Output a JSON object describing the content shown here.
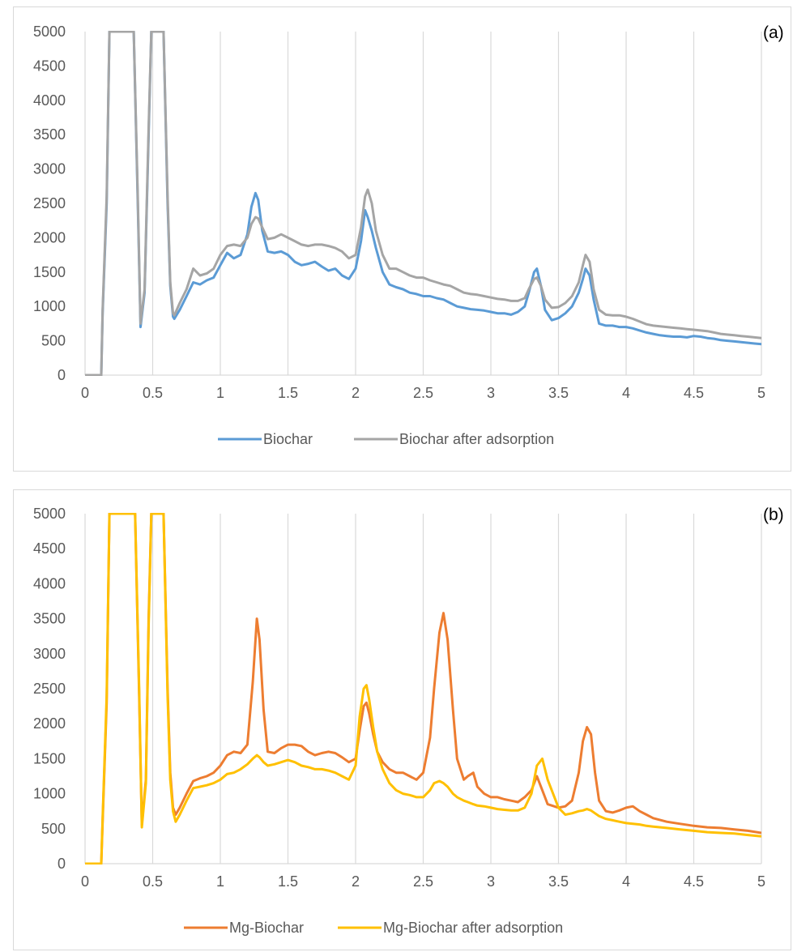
{
  "chart_data": [
    {
      "type": "line",
      "panel_label": "(a)",
      "xlabel": "",
      "ylabel": "",
      "xlim": [
        0,
        5
      ],
      "ylim": [
        0,
        5000
      ],
      "x_ticks": [
        "0",
        "0.5",
        "1",
        "1.5",
        "2",
        "2.5",
        "3",
        "3.5",
        "4",
        "4.5",
        "5"
      ],
      "y_ticks": [
        "0",
        "500",
        "1000",
        "1500",
        "2000",
        "2500",
        "3000",
        "3500",
        "4000",
        "4500",
        "5000"
      ],
      "grid": "vertical",
      "legend_position": "bottom",
      "series": [
        {
          "name": "Biochar",
          "color": "#5b9bd5",
          "x": [
            0,
            0.1,
            0.12,
            0.13,
            0.16,
            0.18,
            0.2,
            0.36,
            0.39,
            0.41,
            0.44,
            0.47,
            0.49,
            0.51,
            0.56,
            0.58,
            0.61,
            0.63,
            0.65,
            0.66,
            0.7,
            0.75,
            0.8,
            0.85,
            0.9,
            0.95,
            1.0,
            1.05,
            1.1,
            1.15,
            1.2,
            1.23,
            1.26,
            1.28,
            1.31,
            1.35,
            1.4,
            1.45,
            1.5,
            1.55,
            1.6,
            1.65,
            1.7,
            1.75,
            1.8,
            1.85,
            1.9,
            1.95,
            2.0,
            2.04,
            2.07,
            2.09,
            2.12,
            2.15,
            2.2,
            2.25,
            2.3,
            2.35,
            2.4,
            2.45,
            2.5,
            2.55,
            2.6,
            2.65,
            2.7,
            2.75,
            2.8,
            2.85,
            2.9,
            2.95,
            3.0,
            3.05,
            3.1,
            3.15,
            3.2,
            3.25,
            3.28,
            3.32,
            3.34,
            3.37,
            3.4,
            3.45,
            3.5,
            3.55,
            3.6,
            3.65,
            3.68,
            3.7,
            3.73,
            3.76,
            3.8,
            3.85,
            3.9,
            3.95,
            4.0,
            4.05,
            4.1,
            4.15,
            4.2,
            4.25,
            4.3,
            4.35,
            4.4,
            4.45,
            4.5,
            4.55,
            4.6,
            4.65,
            4.7,
            4.75,
            4.8,
            4.85,
            4.9,
            4.95,
            5.0
          ],
          "values": [
            0,
            0,
            0,
            900,
            2500,
            5000,
            5000,
            5000,
            2500,
            700,
            1200,
            3500,
            5000,
            5000,
            5000,
            5000,
            2500,
            1300,
            850,
            820,
            950,
            1150,
            1350,
            1320,
            1380,
            1420,
            1600,
            1780,
            1700,
            1750,
            2050,
            2450,
            2650,
            2550,
            2100,
            1800,
            1780,
            1800,
            1750,
            1650,
            1600,
            1620,
            1650,
            1580,
            1520,
            1550,
            1450,
            1400,
            1550,
            1950,
            2400,
            2300,
            2100,
            1850,
            1500,
            1320,
            1280,
            1250,
            1200,
            1180,
            1150,
            1150,
            1120,
            1100,
            1050,
            1000,
            980,
            960,
            950,
            940,
            920,
            900,
            900,
            880,
            920,
            1000,
            1200,
            1500,
            1550,
            1300,
            950,
            800,
            830,
            900,
            1000,
            1200,
            1400,
            1550,
            1450,
            1100,
            750,
            720,
            720,
            700,
            700,
            680,
            650,
            620,
            600,
            580,
            570,
            560,
            560,
            550,
            570,
            560,
            540,
            530,
            510,
            500,
            490,
            480,
            470,
            460,
            450
          ]
        },
        {
          "name": "Biochar after adsorption",
          "color": "#a5a5a5",
          "x": [
            0,
            0.1,
            0.12,
            0.13,
            0.16,
            0.18,
            0.2,
            0.36,
            0.39,
            0.41,
            0.44,
            0.47,
            0.49,
            0.51,
            0.56,
            0.58,
            0.61,
            0.63,
            0.65,
            0.66,
            0.7,
            0.75,
            0.8,
            0.85,
            0.9,
            0.95,
            1.0,
            1.05,
            1.1,
            1.15,
            1.2,
            1.23,
            1.26,
            1.28,
            1.31,
            1.35,
            1.4,
            1.45,
            1.5,
            1.55,
            1.6,
            1.65,
            1.7,
            1.75,
            1.8,
            1.85,
            1.9,
            1.95,
            2.0,
            2.04,
            2.07,
            2.09,
            2.12,
            2.15,
            2.2,
            2.25,
            2.3,
            2.35,
            2.4,
            2.45,
            2.5,
            2.55,
            2.6,
            2.65,
            2.7,
            2.75,
            2.8,
            2.85,
            2.9,
            2.95,
            3.0,
            3.05,
            3.1,
            3.15,
            3.2,
            3.25,
            3.28,
            3.32,
            3.34,
            3.37,
            3.4,
            3.45,
            3.5,
            3.55,
            3.6,
            3.65,
            3.68,
            3.7,
            3.73,
            3.76,
            3.8,
            3.85,
            3.9,
            3.95,
            4.0,
            4.05,
            4.1,
            4.15,
            4.2,
            4.25,
            4.3,
            4.35,
            4.4,
            4.45,
            4.5,
            4.55,
            4.6,
            4.65,
            4.7,
            4.75,
            4.8,
            4.85,
            4.9,
            4.95,
            5.0
          ],
          "values": [
            0,
            0,
            0,
            950,
            2600,
            5000,
            5000,
            5000,
            2600,
            750,
            1250,
            3600,
            5000,
            5000,
            5000,
            5000,
            2600,
            1350,
            900,
            870,
            1050,
            1250,
            1550,
            1450,
            1480,
            1550,
            1750,
            1880,
            1900,
            1880,
            2000,
            2200,
            2300,
            2280,
            2150,
            1980,
            2000,
            2050,
            2000,
            1950,
            1900,
            1880,
            1900,
            1900,
            1880,
            1850,
            1800,
            1700,
            1750,
            2150,
            2600,
            2700,
            2500,
            2100,
            1750,
            1550,
            1550,
            1500,
            1450,
            1420,
            1420,
            1380,
            1350,
            1320,
            1300,
            1250,
            1200,
            1180,
            1170,
            1150,
            1130,
            1110,
            1100,
            1080,
            1080,
            1120,
            1250,
            1400,
            1420,
            1300,
            1100,
            980,
            990,
            1050,
            1150,
            1350,
            1600,
            1750,
            1650,
            1250,
            950,
            880,
            870,
            870,
            850,
            820,
            780,
            740,
            720,
            710,
            700,
            690,
            680,
            670,
            660,
            650,
            640,
            620,
            600,
            590,
            580,
            570,
            560,
            550,
            540
          ]
        }
      ]
    },
    {
      "type": "line",
      "panel_label": "(b)",
      "xlabel": "",
      "ylabel": "",
      "xlim": [
        0,
        5
      ],
      "ylim": [
        0,
        5000
      ],
      "x_ticks": [
        "0",
        "0.5",
        "1",
        "1.5",
        "2",
        "2.5",
        "3",
        "3.5",
        "4",
        "4.5",
        "5"
      ],
      "y_ticks": [
        "0",
        "500",
        "1000",
        "1500",
        "2000",
        "2500",
        "3000",
        "3500",
        "4000",
        "4500",
        "5000"
      ],
      "grid": "vertical",
      "legend_position": "bottom",
      "series": [
        {
          "name": "Mg-Biochar",
          "color": "#ed7d31",
          "x": [
            0,
            0.1,
            0.12,
            0.13,
            0.16,
            0.18,
            0.2,
            0.37,
            0.4,
            0.42,
            0.45,
            0.47,
            0.49,
            0.51,
            0.56,
            0.58,
            0.61,
            0.63,
            0.65,
            0.67,
            0.7,
            0.75,
            0.8,
            0.85,
            0.9,
            0.95,
            1.0,
            1.05,
            1.1,
            1.15,
            1.2,
            1.24,
            1.27,
            1.29,
            1.32,
            1.35,
            1.4,
            1.45,
            1.5,
            1.55,
            1.6,
            1.65,
            1.7,
            1.75,
            1.8,
            1.85,
            1.9,
            1.95,
            2.0,
            2.03,
            2.06,
            2.08,
            2.1,
            2.13,
            2.16,
            2.2,
            2.25,
            2.3,
            2.35,
            2.4,
            2.45,
            2.5,
            2.55,
            2.58,
            2.62,
            2.65,
            2.68,
            2.72,
            2.75,
            2.8,
            2.83,
            2.87,
            2.9,
            2.95,
            3.0,
            3.05,
            3.1,
            3.15,
            3.2,
            3.25,
            3.3,
            3.34,
            3.38,
            3.42,
            3.5,
            3.55,
            3.6,
            3.65,
            3.68,
            3.71,
            3.74,
            3.77,
            3.8,
            3.85,
            3.9,
            3.95,
            4.0,
            4.05,
            4.1,
            4.15,
            4.2,
            4.3,
            4.4,
            4.5,
            4.6,
            4.7,
            4.8,
            4.9,
            5.0
          ],
          "values": [
            0,
            0,
            0,
            600,
            2300,
            5000,
            5000,
            5000,
            2400,
            560,
            1200,
            3500,
            5000,
            5000,
            5000,
            5000,
            2500,
            1300,
            800,
            700,
            800,
            1000,
            1180,
            1220,
            1250,
            1300,
            1400,
            1550,
            1600,
            1580,
            1700,
            2600,
            3500,
            3200,
            2200,
            1600,
            1580,
            1650,
            1700,
            1700,
            1680,
            1600,
            1550,
            1580,
            1600,
            1580,
            1520,
            1450,
            1500,
            1900,
            2250,
            2300,
            2150,
            1850,
            1600,
            1450,
            1350,
            1300,
            1300,
            1250,
            1200,
            1300,
            1800,
            2500,
            3300,
            3580,
            3200,
            2200,
            1500,
            1200,
            1250,
            1300,
            1100,
            1000,
            950,
            950,
            920,
            900,
            880,
            950,
            1050,
            1250,
            1050,
            850,
            800,
            820,
            900,
            1300,
            1750,
            1950,
            1850,
            1300,
            900,
            750,
            730,
            760,
            800,
            820,
            750,
            700,
            650,
            600,
            570,
            540,
            520,
            510,
            490,
            470,
            440
          ]
        },
        {
          "name": "Mg-Biochar after adsorption",
          "color": "#ffc000",
          "x": [
            0,
            0.1,
            0.12,
            0.13,
            0.16,
            0.18,
            0.2,
            0.37,
            0.4,
            0.42,
            0.45,
            0.47,
            0.49,
            0.51,
            0.56,
            0.58,
            0.61,
            0.63,
            0.65,
            0.67,
            0.7,
            0.75,
            0.8,
            0.85,
            0.9,
            0.95,
            1.0,
            1.05,
            1.1,
            1.15,
            1.2,
            1.24,
            1.27,
            1.29,
            1.32,
            1.35,
            1.4,
            1.45,
            1.5,
            1.55,
            1.6,
            1.65,
            1.7,
            1.75,
            1.8,
            1.85,
            1.9,
            1.95,
            2.0,
            2.03,
            2.06,
            2.08,
            2.1,
            2.13,
            2.16,
            2.2,
            2.25,
            2.3,
            2.35,
            2.4,
            2.45,
            2.5,
            2.55,
            2.58,
            2.62,
            2.65,
            2.68,
            2.72,
            2.75,
            2.8,
            2.83,
            2.87,
            2.9,
            2.95,
            3.0,
            3.05,
            3.1,
            3.15,
            3.2,
            3.25,
            3.3,
            3.34,
            3.38,
            3.42,
            3.5,
            3.55,
            3.6,
            3.65,
            3.68,
            3.71,
            3.74,
            3.77,
            3.8,
            3.85,
            3.9,
            3.95,
            4.0,
            4.05,
            4.1,
            4.15,
            4.2,
            4.3,
            4.4,
            4.5,
            4.6,
            4.7,
            4.8,
            4.9,
            5.0
          ],
          "values": [
            0,
            0,
            0,
            650,
            2400,
            5000,
            5000,
            5000,
            2500,
            520,
            1150,
            3400,
            5000,
            5000,
            5000,
            5000,
            2400,
            1200,
            750,
            600,
            700,
            900,
            1080,
            1100,
            1120,
            1150,
            1200,
            1280,
            1300,
            1350,
            1420,
            1500,
            1550,
            1520,
            1450,
            1400,
            1420,
            1450,
            1480,
            1450,
            1400,
            1380,
            1350,
            1350,
            1330,
            1300,
            1250,
            1200,
            1400,
            2100,
            2500,
            2550,
            2350,
            1950,
            1600,
            1350,
            1150,
            1050,
            1000,
            980,
            950,
            950,
            1050,
            1150,
            1180,
            1150,
            1100,
            1000,
            950,
            900,
            880,
            850,
            830,
            820,
            800,
            780,
            770,
            760,
            760,
            800,
            1000,
            1400,
            1500,
            1200,
            800,
            700,
            720,
            750,
            760,
            780,
            760,
            720,
            680,
            640,
            620,
            600,
            580,
            570,
            560,
            540,
            530,
            510,
            490,
            470,
            450,
            440,
            430,
            410,
            390
          ]
        }
      ]
    }
  ]
}
